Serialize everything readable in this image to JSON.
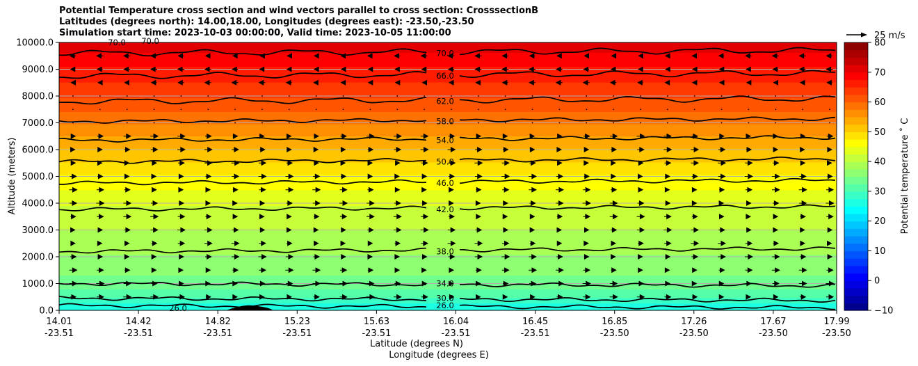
{
  "chart_data": {
    "type": "heatmap",
    "title_lines": [
      "Potential Temperature cross section and wind vectors parallel to cross section: CrosssectionB",
      "Latitudes (degrees north): 14.00,18.00, Longitudes (degrees east): -23.50,-23.50",
      "Simulation start time: 2023-10-03 00:00:00, Valid time: 2023-10-05 11:00:00"
    ],
    "ylabel": "Altitude (meters)",
    "xlabel_line1": "Latitude (degrees N)",
    "xlabel_line2": "Longitude (degrees E)",
    "ylim": [
      0,
      10000
    ],
    "y_ticks": [
      "0.0",
      "1000.0",
      "2000.0",
      "3000.0",
      "4000.0",
      "5000.0",
      "6000.0",
      "7000.0",
      "8000.0",
      "9000.0",
      "10000.0"
    ],
    "x_ticks_lat": [
      "14.01",
      "14.42",
      "14.82",
      "15.23",
      "15.63",
      "16.04",
      "16.45",
      "16.85",
      "17.26",
      "17.67",
      "17.99"
    ],
    "x_ticks_lon": [
      "-23.51",
      "-23.51",
      "-23.51",
      "-23.51",
      "-23.51",
      "-23.51",
      "-23.51",
      "-23.50",
      "-23.50",
      "-23.50",
      "-23.50"
    ],
    "colorbar": {
      "label": "Potential temperature ˚ C",
      "range": [
        -10,
        80
      ],
      "ticks": [
        "−10",
        "0",
        "10",
        "20",
        "30",
        "40",
        "50",
        "60",
        "70",
        "80"
      ]
    },
    "contours": [
      {
        "label": "26.0",
        "altitude": 180
      },
      {
        "label": "30.0",
        "altitude": 450
      },
      {
        "label": "34.0",
        "altitude": 1000
      },
      {
        "label": "38.0",
        "altitude": 2200
      },
      {
        "label": "42.0",
        "altitude": 3770
      },
      {
        "label": "46.0",
        "altitude": 4750
      },
      {
        "label": "50.0",
        "altitude": 5550
      },
      {
        "label": "54.0",
        "altitude": 6350
      },
      {
        "label": "58.0",
        "altitude": 7050
      },
      {
        "label": "62.0",
        "altitude": 7800
      },
      {
        "label": "66.0",
        "altitude": 8750
      },
      {
        "label": "70.0",
        "altitude": 9600
      }
    ],
    "extra_contour_labels": [
      "26.0",
      "70.0",
      "70.0"
    ],
    "wind_reference": "25 m/s",
    "wind_reversal_altitude": 7300,
    "terrain_peak": {
      "lat": 15.0,
      "altitude": 180
    }
  }
}
